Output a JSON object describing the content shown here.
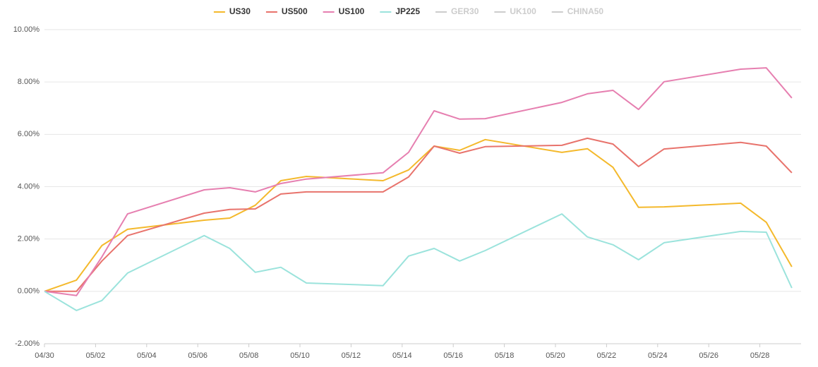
{
  "chart_data": {
    "type": "line",
    "x": [
      "04/30",
      "05/01",
      "05/02",
      "05/03",
      "05/06",
      "05/07",
      "05/08",
      "05/09",
      "05/10",
      "05/13",
      "05/14",
      "05/15",
      "05/16",
      "05/17",
      "05/20",
      "05/21",
      "05/22",
      "05/23",
      "05/24",
      "05/27",
      "05/28",
      "05/29"
    ],
    "series": [
      {
        "name": "US30",
        "color": "#f4b92c",
        "values": [
          0,
          0.43,
          1.75,
          2.37,
          2.72,
          2.8,
          3.29,
          4.23,
          4.39,
          4.23,
          4.64,
          5.55,
          5.39,
          5.8,
          5.31,
          5.45,
          4.74,
          3.21,
          3.23,
          3.37,
          2.64,
          0.94
        ]
      },
      {
        "name": "US500",
        "color": "#e8736c",
        "values": [
          0,
          0,
          1.16,
          2.13,
          2.99,
          3.13,
          3.15,
          3.72,
          3.8,
          3.8,
          4.37,
          5.55,
          5.28,
          5.53,
          5.58,
          5.85,
          5.63,
          4.77,
          5.44,
          5.69,
          5.55,
          4.53
        ]
      },
      {
        "name": "US100",
        "color": "#e67fb0",
        "values": [
          0,
          -0.16,
          1.32,
          2.96,
          3.88,
          3.96,
          3.8,
          4.12,
          4.29,
          4.53,
          5.31,
          6.9,
          6.58,
          6.6,
          7.22,
          7.55,
          7.68,
          6.95,
          8.01,
          8.49,
          8.54,
          7.39
        ]
      },
      {
        "name": "JP225",
        "color": "#9be3dc",
        "values": [
          0,
          -0.73,
          -0.35,
          0.7,
          2.13,
          1.64,
          0.73,
          0.92,
          0.32,
          0.22,
          1.35,
          1.64,
          1.16,
          1.56,
          2.96,
          2.08,
          1.78,
          1.21,
          1.86,
          2.29,
          2.26,
          0.13
        ]
      }
    ],
    "inactive_series": [
      "GER30",
      "UK100",
      "CHINA50"
    ],
    "ylim": [
      -2,
      10
    ],
    "yticks": [
      {
        "value": -2,
        "label": "-2.00%"
      },
      {
        "value": 0,
        "label": "0.00%"
      },
      {
        "value": 2,
        "label": "2.00%"
      },
      {
        "value": 4,
        "label": "4.00%"
      },
      {
        "value": 6,
        "label": "6.00%"
      },
      {
        "value": 8,
        "label": "8.00%"
      },
      {
        "value": 10,
        "label": "10.00%"
      }
    ],
    "xticks": [
      "04/30",
      "05/02",
      "05/04",
      "05/06",
      "05/08",
      "05/10",
      "05/12",
      "05/14",
      "05/16",
      "05/18",
      "05/20",
      "05/22",
      "05/24",
      "05/26",
      "05/28"
    ],
    "grid": true
  }
}
